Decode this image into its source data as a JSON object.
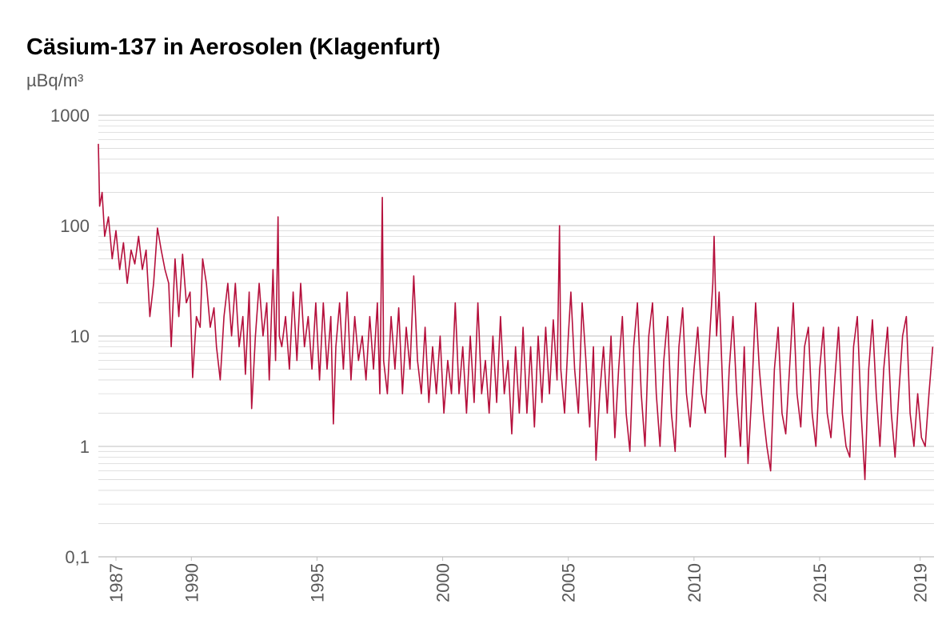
{
  "chart_data": {
    "type": "line",
    "title": "Cäsium-137 in Aerosolen (Klagenfurt)",
    "y_label": "µBq/m³",
    "log_y": true,
    "grid": true,
    "ylim": [
      0.1,
      1000
    ],
    "yticks": [
      {
        "value": 0.1,
        "label": "0,1"
      },
      1,
      10,
      100,
      1000
    ],
    "yminorticks": [
      0.2,
      0.3,
      0.4,
      0.5,
      0.6,
      0.7,
      0.8,
      0.9,
      2,
      3,
      4,
      5,
      6,
      7,
      8,
      9,
      20,
      30,
      40,
      50,
      60,
      70,
      80,
      90,
      200,
      300,
      400,
      500,
      600,
      700,
      800,
      900
    ],
    "xlim": [
      1986.3,
      2019.55
    ],
    "xticks": [
      1987,
      1990,
      1995,
      2000,
      2005,
      2010,
      2015,
      2019
    ],
    "x": [
      1986.3,
      1986.35,
      1986.45,
      1986.55,
      1986.7,
      1986.85,
      1987.0,
      1987.15,
      1987.3,
      1987.45,
      1987.6,
      1987.75,
      1987.9,
      1988.05,
      1988.2,
      1988.35,
      1988.5,
      1988.65,
      1988.8,
      1988.95,
      1989.1,
      1989.2,
      1989.35,
      1989.5,
      1989.65,
      1989.8,
      1989.95,
      1990.05,
      1990.2,
      1990.35,
      1990.45,
      1990.6,
      1990.75,
      1990.9,
      1991.0,
      1991.15,
      1991.3,
      1991.45,
      1991.6,
      1991.75,
      1991.9,
      1992.05,
      1992.15,
      1992.3,
      1992.4,
      1992.55,
      1992.7,
      1992.85,
      1993.0,
      1993.1,
      1993.25,
      1993.35,
      1993.45,
      1993.5,
      1993.6,
      1993.75,
      1993.9,
      1994.05,
      1994.2,
      1994.35,
      1994.5,
      1994.65,
      1994.8,
      1994.95,
      1995.1,
      1995.25,
      1995.4,
      1995.55,
      1995.65,
      1995.75,
      1995.9,
      1996.05,
      1996.2,
      1996.35,
      1996.5,
      1996.65,
      1996.8,
      1996.95,
      1997.1,
      1997.25,
      1997.4,
      1997.5,
      1997.6,
      1997.65,
      1997.8,
      1997.95,
      1998.1,
      1998.25,
      1998.4,
      1998.55,
      1998.7,
      1998.85,
      1999.0,
      1999.15,
      1999.3,
      1999.45,
      1999.6,
      1999.75,
      1999.9,
      2000.05,
      2000.2,
      2000.35,
      2000.5,
      2000.65,
      2000.8,
      2000.95,
      2001.1,
      2001.25,
      2001.4,
      2001.55,
      2001.7,
      2001.85,
      2002.0,
      2002.15,
      2002.3,
      2002.45,
      2002.6,
      2002.75,
      2002.9,
      2003.05,
      2003.2,
      2003.35,
      2003.5,
      2003.65,
      2003.8,
      2003.95,
      2004.1,
      2004.25,
      2004.4,
      2004.55,
      2004.65,
      2004.7,
      2004.85,
      2005.0,
      2005.1,
      2005.25,
      2005.4,
      2005.55,
      2005.7,
      2005.85,
      2006.0,
      2006.1,
      2006.25,
      2006.4,
      2006.55,
      2006.7,
      2006.85,
      2007.0,
      2007.15,
      2007.3,
      2007.45,
      2007.6,
      2007.75,
      2007.9,
      2008.05,
      2008.2,
      2008.35,
      2008.5,
      2008.65,
      2008.8,
      2008.95,
      2009.1,
      2009.25,
      2009.4,
      2009.55,
      2009.7,
      2009.85,
      2010.0,
      2010.15,
      2010.3,
      2010.45,
      2010.6,
      2010.75,
      2010.8,
      2010.9,
      2011.0,
      2011.15,
      2011.25,
      2011.4,
      2011.55,
      2011.7,
      2011.85,
      2012.0,
      2012.15,
      2012.3,
      2012.45,
      2012.6,
      2012.75,
      2012.9,
      2013.05,
      2013.2,
      2013.35,
      2013.5,
      2013.65,
      2013.8,
      2013.95,
      2014.1,
      2014.25,
      2014.4,
      2014.55,
      2014.7,
      2014.85,
      2015.0,
      2015.15,
      2015.3,
      2015.45,
      2015.6,
      2015.75,
      2015.9,
      2016.05,
      2016.2,
      2016.35,
      2016.5,
      2016.65,
      2016.8,
      2016.95,
      2017.1,
      2017.25,
      2017.4,
      2017.55,
      2017.7,
      2017.85,
      2018.0,
      2018.15,
      2018.3,
      2018.45,
      2018.6,
      2018.75,
      2018.9,
      2019.05,
      2019.2,
      2019.35,
      2019.5
    ],
    "series": [
      {
        "color": "#b5103c",
        "values": [
          550,
          150,
          200,
          80,
          120,
          50,
          90,
          40,
          70,
          30,
          60,
          45,
          80,
          40,
          60,
          15,
          30,
          95,
          60,
          40,
          30,
          8,
          50,
          15,
          55,
          20,
          25,
          4.2,
          15,
          12,
          50,
          30,
          12,
          18,
          8,
          4,
          15,
          30,
          10,
          30,
          8,
          15,
          4.5,
          25,
          2.2,
          10,
          30,
          10,
          20,
          4,
          40,
          6,
          120,
          10,
          8,
          15,
          5,
          25,
          6,
          30,
          8,
          15,
          5,
          20,
          4,
          20,
          5,
          15,
          1.6,
          8,
          20,
          5,
          25,
          4,
          15,
          6,
          10,
          4,
          15,
          5,
          20,
          3,
          180,
          6,
          3,
          15,
          5,
          18,
          3,
          12,
          5,
          35,
          6,
          3,
          12,
          2.5,
          8,
          3,
          10,
          2,
          6,
          3,
          20,
          3,
          8,
          2,
          10,
          2.5,
          20,
          3,
          6,
          2,
          10,
          2.5,
          15,
          3,
          6,
          1.3,
          8,
          2,
          12,
          2,
          8,
          1.5,
          10,
          2.5,
          12,
          3,
          14,
          4,
          100,
          5,
          2,
          10,
          25,
          5,
          2,
          20,
          6,
          1.5,
          8,
          0.75,
          3,
          8,
          2,
          10,
          1.2,
          5,
          15,
          2,
          0.9,
          8,
          20,
          3,
          1,
          10,
          20,
          3,
          1,
          6,
          15,
          2,
          0.9,
          8,
          18,
          3,
          1.5,
          5,
          12,
          3,
          2,
          8,
          30,
          80,
          10,
          25,
          3,
          0.8,
          5,
          15,
          3,
          1,
          8,
          0.7,
          3,
          20,
          5,
          2,
          1,
          0.6,
          5,
          12,
          2,
          1.3,
          5,
          20,
          3,
          1.5,
          8,
          12,
          2,
          1,
          5,
          12,
          2,
          1.2,
          4,
          12,
          2,
          1,
          0.8,
          8,
          15,
          2,
          0.5,
          5,
          14,
          3,
          1,
          5,
          12,
          2,
          0.8,
          3,
          10,
          15,
          2,
          1,
          3,
          1.2,
          1,
          3,
          8
        ]
      }
    ]
  }
}
